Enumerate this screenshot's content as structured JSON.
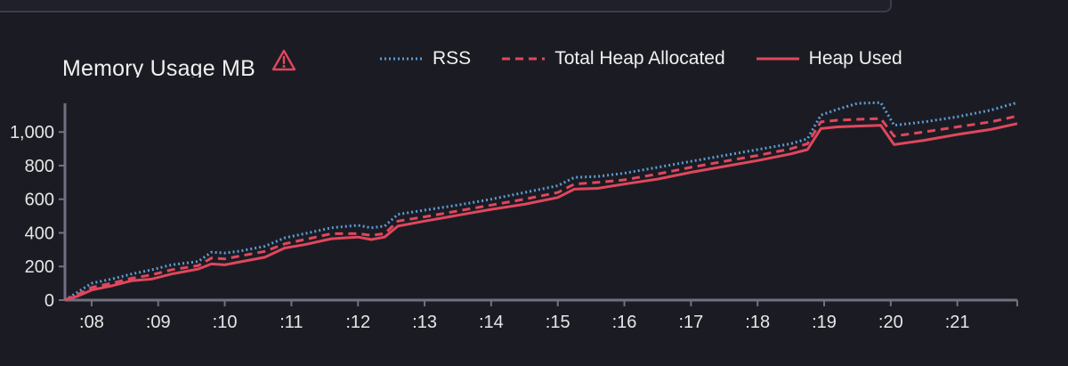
{
  "chart_data": {
    "type": "line",
    "title": "Memory Usage MB",
    "xlabel": "",
    "ylabel": "",
    "ylim": [
      0,
      1160
    ],
    "xlim": [
      7.6,
      21.9
    ],
    "y_ticks": [
      {
        "value": 0,
        "label": "0"
      },
      {
        "value": 200,
        "label": "200"
      },
      {
        "value": 400,
        "label": "400"
      },
      {
        "value": 600,
        "label": "600"
      },
      {
        "value": 800,
        "label": "800"
      },
      {
        "value": 1000,
        "label": "1,000"
      }
    ],
    "x_ticks": [
      {
        "value": 8,
        "label": ":08"
      },
      {
        "value": 9,
        "label": ":09"
      },
      {
        "value": 10,
        "label": ":10"
      },
      {
        "value": 11,
        "label": ":11"
      },
      {
        "value": 12,
        "label": ":12"
      },
      {
        "value": 13,
        "label": ":13"
      },
      {
        "value": 14,
        "label": ":14"
      },
      {
        "value": 15,
        "label": ":15"
      },
      {
        "value": 16,
        "label": ":16"
      },
      {
        "value": 17,
        "label": ":17"
      },
      {
        "value": 18,
        "label": ":18"
      },
      {
        "value": 19,
        "label": ":19"
      },
      {
        "value": 20,
        "label": ":20"
      },
      {
        "value": 21,
        "label": ":21"
      }
    ],
    "legend_position": "top",
    "grid": false,
    "colors": {
      "rss": "#5b9bd5",
      "heap_total": "#e0475d",
      "heap_used": "#e0475d",
      "warning": "#e0475d",
      "axis": "#6f7180"
    },
    "series": [
      {
        "name": "RSS",
        "style": "dotted",
        "x": [
          7.6,
          7.8,
          8.0,
          8.3,
          8.6,
          8.9,
          9.2,
          9.6,
          9.8,
          10.0,
          10.2,
          10.6,
          10.9,
          11.2,
          11.6,
          12.0,
          12.2,
          12.4,
          12.6,
          13.0,
          13.5,
          14.0,
          14.5,
          15.0,
          15.25,
          15.6,
          16.0,
          16.5,
          17.0,
          17.5,
          18.0,
          18.5,
          18.75,
          18.95,
          19.2,
          19.5,
          19.85,
          20.05,
          20.5,
          21.0,
          21.5,
          21.9
        ],
        "y": [
          0,
          50,
          100,
          125,
          155,
          180,
          210,
          230,
          285,
          280,
          290,
          320,
          370,
          395,
          430,
          445,
          430,
          440,
          510,
          535,
          565,
          600,
          640,
          680,
          730,
          735,
          755,
          790,
          825,
          860,
          895,
          930,
          960,
          1100,
          1135,
          1170,
          1175,
          1040,
          1060,
          1090,
          1130,
          1175
        ]
      },
      {
        "name": "Total Heap Allocated",
        "style": "dashed",
        "x": [
          7.6,
          7.8,
          8.0,
          8.3,
          8.6,
          8.9,
          9.2,
          9.6,
          9.8,
          10.0,
          10.2,
          10.6,
          10.9,
          11.2,
          11.6,
          12.0,
          12.2,
          12.4,
          12.6,
          13.0,
          13.5,
          14.0,
          14.5,
          15.0,
          15.25,
          15.6,
          16.0,
          16.5,
          17.0,
          17.5,
          18.0,
          18.5,
          18.75,
          18.95,
          19.2,
          19.5,
          19.85,
          20.05,
          20.5,
          21.0,
          21.5,
          21.9
        ],
        "y": [
          0,
          35,
          75,
          100,
          130,
          150,
          180,
          205,
          250,
          245,
          260,
          290,
          335,
          360,
          395,
          395,
          385,
          395,
          470,
          495,
          530,
          565,
          600,
          640,
          690,
          700,
          715,
          750,
          790,
          825,
          860,
          900,
          930,
          1060,
          1070,
          1075,
          1080,
          975,
          1000,
          1030,
          1060,
          1095
        ]
      },
      {
        "name": "Heap Used",
        "style": "solid",
        "x": [
          7.6,
          7.8,
          8.0,
          8.3,
          8.6,
          8.9,
          9.2,
          9.6,
          9.8,
          10.0,
          10.2,
          10.6,
          10.9,
          11.2,
          11.6,
          12.0,
          12.2,
          12.4,
          12.6,
          13.0,
          13.5,
          14.0,
          14.5,
          15.0,
          15.25,
          15.6,
          16.0,
          16.5,
          17.0,
          17.5,
          18.0,
          18.5,
          18.75,
          18.95,
          19.2,
          19.5,
          19.85,
          20.05,
          20.5,
          21.0,
          21.5,
          21.9
        ],
        "y": [
          0,
          25,
          60,
          85,
          115,
          125,
          155,
          185,
          215,
          210,
          225,
          255,
          310,
          330,
          365,
          375,
          360,
          375,
          440,
          470,
          505,
          540,
          570,
          610,
          660,
          665,
          690,
          720,
          760,
          795,
          830,
          870,
          895,
          1020,
          1030,
          1035,
          1040,
          925,
          950,
          985,
          1015,
          1050
        ]
      }
    ]
  }
}
